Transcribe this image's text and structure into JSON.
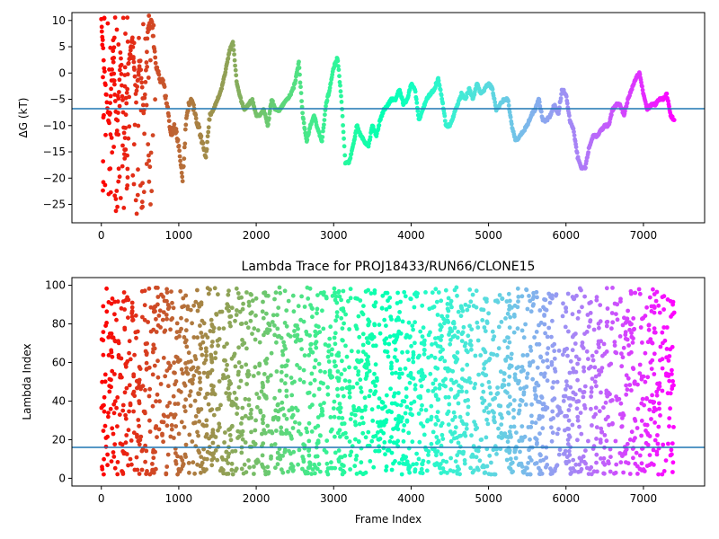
{
  "chart_data": [
    {
      "type": "scatter",
      "title": "",
      "xlabel": "",
      "ylabel": "ΔG (kT)",
      "xlim": [
        -380,
        7790
      ],
      "ylim": [
        -28.5,
        11.5
      ],
      "xticks": [
        0,
        1000,
        2000,
        3000,
        4000,
        5000,
        6000,
        7000
      ],
      "yticks": [
        10,
        5,
        0,
        -5,
        -10,
        -15,
        -20,
        -25
      ],
      "hline": -6.8,
      "hline_color": "#1f77b4",
      "colormap": "rainbow (reversed, early frames red → late frames violet)",
      "grid": false,
      "legend": "none",
      "approx_trace": [
        [
          0,
          10
        ],
        [
          50,
          -2
        ],
        [
          100,
          -10
        ],
        [
          150,
          4
        ],
        [
          200,
          -12
        ],
        [
          250,
          3
        ],
        [
          300,
          -14
        ],
        [
          350,
          2
        ],
        [
          400,
          7
        ],
        [
          450,
          -5
        ],
        [
          500,
          3
        ],
        [
          550,
          -8
        ],
        [
          600,
          8
        ],
        [
          650,
          10
        ],
        [
          700,
          2
        ],
        [
          750,
          -1
        ],
        [
          800,
          -2
        ],
        [
          850,
          -6
        ],
        [
          900,
          -12
        ],
        [
          950,
          -10
        ],
        [
          1000,
          -14
        ],
        [
          1050,
          -20
        ],
        [
          1100,
          -8
        ],
        [
          1150,
          -5
        ],
        [
          1200,
          -7
        ],
        [
          1250,
          -10
        ],
        [
          1300,
          -13
        ],
        [
          1350,
          -16
        ],
        [
          1400,
          -8
        ],
        [
          1450,
          -7
        ],
        [
          1500,
          -5
        ],
        [
          1550,
          -3
        ],
        [
          1600,
          0
        ],
        [
          1650,
          4
        ],
        [
          1700,
          6
        ],
        [
          1750,
          -2
        ],
        [
          1800,
          -5
        ],
        [
          1850,
          -7
        ],
        [
          1900,
          -6
        ],
        [
          1950,
          -5
        ],
        [
          2000,
          -8
        ],
        [
          2050,
          -8
        ],
        [
          2100,
          -7
        ],
        [
          2150,
          -10
        ],
        [
          2200,
          -5
        ],
        [
          2250,
          -7
        ],
        [
          2300,
          -7
        ],
        [
          2350,
          -6
        ],
        [
          2400,
          -5
        ],
        [
          2450,
          -4
        ],
        [
          2500,
          -2
        ],
        [
          2550,
          2
        ],
        [
          2600,
          -8
        ],
        [
          2650,
          -13
        ],
        [
          2700,
          -10
        ],
        [
          2750,
          -8
        ],
        [
          2800,
          -11
        ],
        [
          2850,
          -13
        ],
        [
          2900,
          -6
        ],
        [
          2950,
          -3
        ],
        [
          3000,
          1
        ],
        [
          3050,
          3
        ],
        [
          3100,
          -5
        ],
        [
          3150,
          -17
        ],
        [
          3200,
          -17
        ],
        [
          3250,
          -14
        ],
        [
          3300,
          -10
        ],
        [
          3350,
          -12
        ],
        [
          3400,
          -13
        ],
        [
          3450,
          -14
        ],
        [
          3500,
          -10
        ],
        [
          3550,
          -12
        ],
        [
          3600,
          -9
        ],
        [
          3650,
          -7
        ],
        [
          3700,
          -6
        ],
        [
          3750,
          -5
        ],
        [
          3800,
          -5
        ],
        [
          3850,
          -3
        ],
        [
          3900,
          -6
        ],
        [
          3950,
          -5
        ],
        [
          4000,
          -2
        ],
        [
          4050,
          -3
        ],
        [
          4100,
          -9
        ],
        [
          4150,
          -7
        ],
        [
          4200,
          -5
        ],
        [
          4250,
          -4
        ],
        [
          4300,
          -3
        ],
        [
          4350,
          -1
        ],
        [
          4400,
          -5
        ],
        [
          4450,
          -10
        ],
        [
          4500,
          -10
        ],
        [
          4550,
          -8
        ],
        [
          4600,
          -6
        ],
        [
          4650,
          -4
        ],
        [
          4700,
          -5
        ],
        [
          4750,
          -3
        ],
        [
          4800,
          -5
        ],
        [
          4850,
          -2
        ],
        [
          4900,
          -4
        ],
        [
          4950,
          -3
        ],
        [
          5000,
          -2
        ],
        [
          5050,
          -3
        ],
        [
          5100,
          -7
        ],
        [
          5150,
          -6
        ],
        [
          5200,
          -5
        ],
        [
          5250,
          -5
        ],
        [
          5300,
          -10
        ],
        [
          5350,
          -13
        ],
        [
          5400,
          -12
        ],
        [
          5450,
          -11
        ],
        [
          5500,
          -10
        ],
        [
          5550,
          -8
        ],
        [
          5600,
          -7
        ],
        [
          5650,
          -5
        ],
        [
          5700,
          -9
        ],
        [
          5750,
          -9
        ],
        [
          5800,
          -8
        ],
        [
          5850,
          -6
        ],
        [
          5900,
          -8
        ],
        [
          5950,
          -3
        ],
        [
          6000,
          -4
        ],
        [
          6050,
          -9
        ],
        [
          6100,
          -11
        ],
        [
          6150,
          -16
        ],
        [
          6200,
          -18
        ],
        [
          6250,
          -18
        ],
        [
          6300,
          -14
        ],
        [
          6350,
          -12
        ],
        [
          6400,
          -12
        ],
        [
          6450,
          -11
        ],
        [
          6500,
          -10
        ],
        [
          6550,
          -10
        ],
        [
          6600,
          -7
        ],
        [
          6650,
          -6
        ],
        [
          6700,
          -6
        ],
        [
          6750,
          -8
        ],
        [
          6800,
          -5
        ],
        [
          6850,
          -3
        ],
        [
          6900,
          -1
        ],
        [
          6950,
          0
        ],
        [
          7000,
          -4
        ],
        [
          7050,
          -7
        ],
        [
          7100,
          -6
        ],
        [
          7150,
          -6
        ],
        [
          7200,
          -5
        ],
        [
          7250,
          -5
        ],
        [
          7300,
          -4
        ],
        [
          7350,
          -8
        ],
        [
          7400,
          -9
        ]
      ]
    },
    {
      "type": "scatter",
      "title": "Lambda Trace for PROJ18433/RUN66/CLONE15",
      "xlabel": "Frame Index",
      "ylabel": "Lambda Index",
      "xlim": [
        -380,
        7790
      ],
      "ylim": [
        -4,
        104
      ],
      "xticks": [
        0,
        1000,
        2000,
        3000,
        4000,
        5000,
        6000,
        7000
      ],
      "yticks": [
        0,
        20,
        40,
        60,
        80,
        100
      ],
      "hline": 16,
      "hline_color": "#1f77b4",
      "colormap": "rainbow (reversed, early frames red → late frames violet)",
      "point_count": 7400,
      "value_range": [
        2,
        99
      ],
      "grid": false,
      "legend": "none"
    }
  ]
}
